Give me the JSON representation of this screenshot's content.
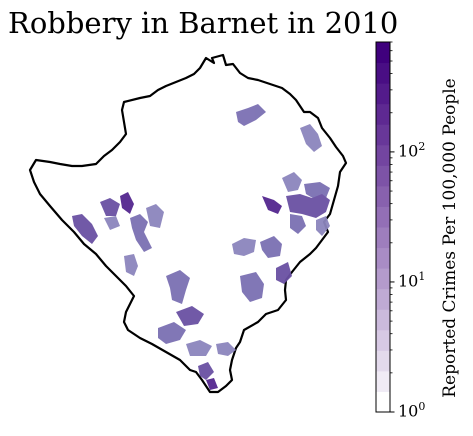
{
  "title": "Robbery in Barnet in 2010",
  "colorbar": {
    "label": "Reported Crimes Per 100,000 People",
    "scale": "log",
    "range": [
      1,
      700
    ],
    "ticks": [
      {
        "base": "10",
        "exp": "0",
        "value": 1
      },
      {
        "base": "10",
        "exp": "1",
        "value": 10
      },
      {
        "base": "10",
        "exp": "2",
        "value": 100
      }
    ],
    "steps": 18,
    "color_low": "#ffffff",
    "color_high": "#3f007d"
  },
  "map": {
    "boundary_color": "#000000",
    "area_fill_colors": [
      "#8c85bd",
      "#7b70b3",
      "#6a51a3",
      "#54278f",
      "#a09cc9"
    ]
  }
}
